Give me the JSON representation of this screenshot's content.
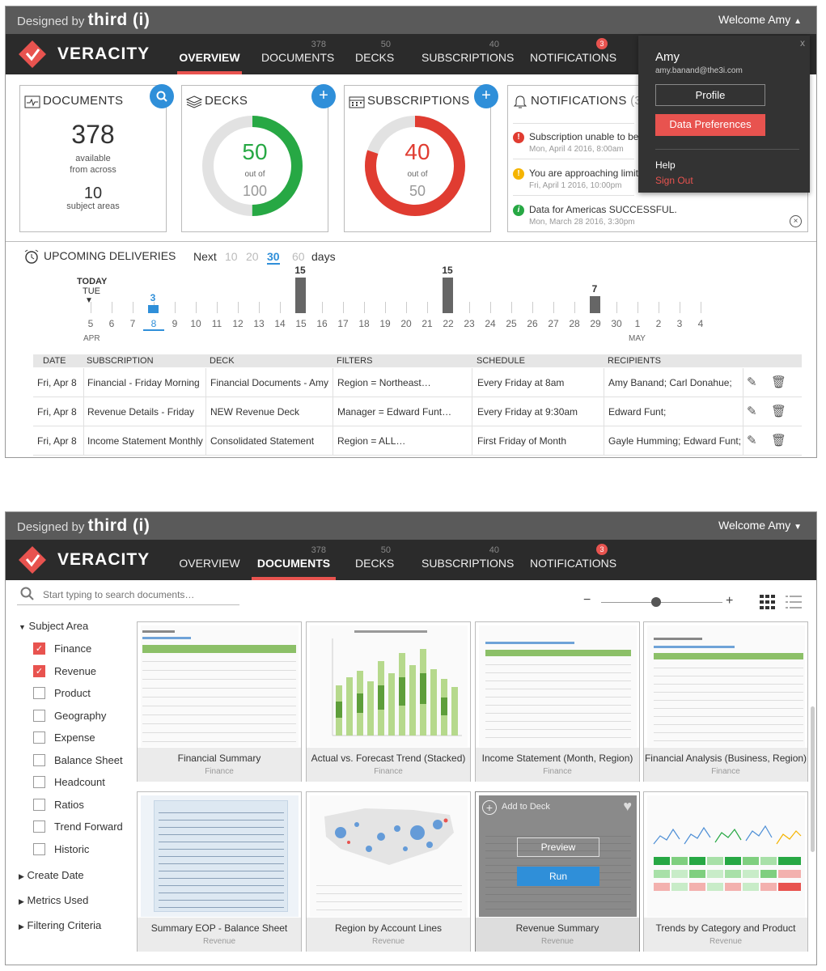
{
  "header": {
    "designed_by": "Designed by",
    "brand": "third (i)",
    "welcome": "Welcome Amy",
    "caret_up": "▲",
    "caret_down": "▼"
  },
  "app": {
    "name": "VERACITY"
  },
  "tabs": [
    {
      "label": "OVERVIEW",
      "count": ""
    },
    {
      "label": "DOCUMENTS",
      "count": "378"
    },
    {
      "label": "DECKS",
      "count": "50"
    },
    {
      "label": "SUBSCRIPTIONS",
      "count": "40"
    },
    {
      "label": "NOTIFICATIONS",
      "count": "3"
    }
  ],
  "cards": {
    "documents": {
      "title": "DOCUMENTS",
      "total": "378",
      "available": "available",
      "from": "from across",
      "areas": "10",
      "areas_label": "subject areas"
    },
    "decks": {
      "title": "DECKS",
      "value": "50",
      "out_of": "out of",
      "max": "100",
      "fraction": 0.5
    },
    "subscriptions": {
      "title": "SUBSCRIPTIONS",
      "value": "40",
      "out_of": "out of",
      "max": "50",
      "fraction": 0.8
    },
    "notifications": {
      "title": "NOTIFICATIONS",
      "count": "(3)"
    }
  },
  "notifications": [
    {
      "text": "Subscription unable to be",
      "date": "Mon, April 4 2016, 8:00am",
      "type": "error",
      "icon": "!"
    },
    {
      "text": "You are approaching limit",
      "date": "Fri, April 1 2016, 10:00pm",
      "type": "warning",
      "icon": "!"
    },
    {
      "text": "Data for Americas SUCCESSFUL.",
      "date": "Mon, March 28 2016, 3:30pm",
      "type": "success",
      "icon": "i"
    }
  ],
  "user_menu": {
    "name": "Amy",
    "email": "amy.banand@the3i.com",
    "profile": "Profile",
    "data_prefs": "Data Preferences",
    "help": "Help",
    "sign_out": "Sign Out",
    "close": "x"
  },
  "deliveries": {
    "title": "UPCOMING DELIVERIES",
    "next": "Next",
    "range_options": [
      "10",
      "20",
      "30",
      "60"
    ],
    "selected": "30",
    "days": "days",
    "today": "TODAY",
    "today_day": "TUE",
    "month1": "APR",
    "month2": "MAY",
    "dates": [
      "5",
      "6",
      "7",
      "8",
      "9",
      "10",
      "11",
      "12",
      "13",
      "14",
      "15",
      "16",
      "17",
      "18",
      "19",
      "20",
      "21",
      "22",
      "23",
      "24",
      "25",
      "26",
      "27",
      "28",
      "29",
      "30",
      "1",
      "2",
      "3",
      "4"
    ],
    "bars": [
      {
        "date": "8",
        "count": "3",
        "highlight": true
      },
      {
        "date": "15",
        "count": "15"
      },
      {
        "date": "22",
        "count": "15"
      },
      {
        "date": "29",
        "count": "7"
      }
    ],
    "columns": [
      "DATE",
      "SUBSCRIPTION",
      "DECK",
      "FILTERS",
      "SCHEDULE",
      "RECIPIENTS"
    ],
    "rows": [
      [
        "Fri, Apr 8",
        "Financial - Friday Morning",
        "Financial Documents - Amy",
        "Region = Northeast…",
        "Every Friday at 8am",
        "Amy Banand; Carl Donahue;"
      ],
      [
        "Fri, Apr 8",
        "Revenue Details - Friday",
        "NEW Revenue Deck",
        "Manager = Edward Funt…",
        "Every Friday at 9:30am",
        "Edward Funt;"
      ],
      [
        "Fri, Apr 8",
        "Income Statement Monthly",
        "Consolidated Statement",
        "Region = ALL…",
        "First Friday of Month",
        "Gayle Humming; Edward Funt;"
      ]
    ]
  },
  "docs": {
    "search_placeholder": "Start typing to search documents…",
    "zoom_minus": "−",
    "zoom_plus": "+",
    "zoom_level": 0.45,
    "filters": {
      "subject_area": "Subject Area",
      "items": [
        {
          "label": "Finance",
          "checked": true
        },
        {
          "label": "Revenue",
          "checked": true
        },
        {
          "label": "Product",
          "checked": false
        },
        {
          "label": "Geography",
          "checked": false
        },
        {
          "label": "Expense",
          "checked": false
        },
        {
          "label": "Balance Sheet",
          "checked": false
        },
        {
          "label": "Headcount",
          "checked": false
        },
        {
          "label": "Ratios",
          "checked": false
        },
        {
          "label": "Trend Forward",
          "checked": false
        },
        {
          "label": "Historic",
          "checked": false
        }
      ],
      "groups": [
        "Create Date",
        "Metrics Used",
        "Filtering Criteria"
      ]
    },
    "tiles": [
      {
        "title": "Financial Summary",
        "category": "Finance"
      },
      {
        "title": "Actual vs. Forecast Trend (Stacked)",
        "category": "Finance"
      },
      {
        "title": "Income Statement (Month, Region)",
        "category": "Finance"
      },
      {
        "title": "Financial Analysis (Business, Region)",
        "category": "Finance"
      },
      {
        "title": "Summary EOP - Balance Sheet",
        "category": "Revenue"
      },
      {
        "title": "Region by Account Lines",
        "category": "Revenue"
      },
      {
        "title": "Revenue Summary",
        "category": "Revenue"
      },
      {
        "title": "Trends by Category and Product",
        "category": "Revenue"
      }
    ],
    "hover": {
      "add_to_deck": "Add to Deck",
      "preview": "Preview",
      "run": "Run"
    }
  },
  "colors": {
    "accent": "#e8534f",
    "blue": "#2f8fd9",
    "green": "#27a844",
    "red": "#e03c31"
  }
}
